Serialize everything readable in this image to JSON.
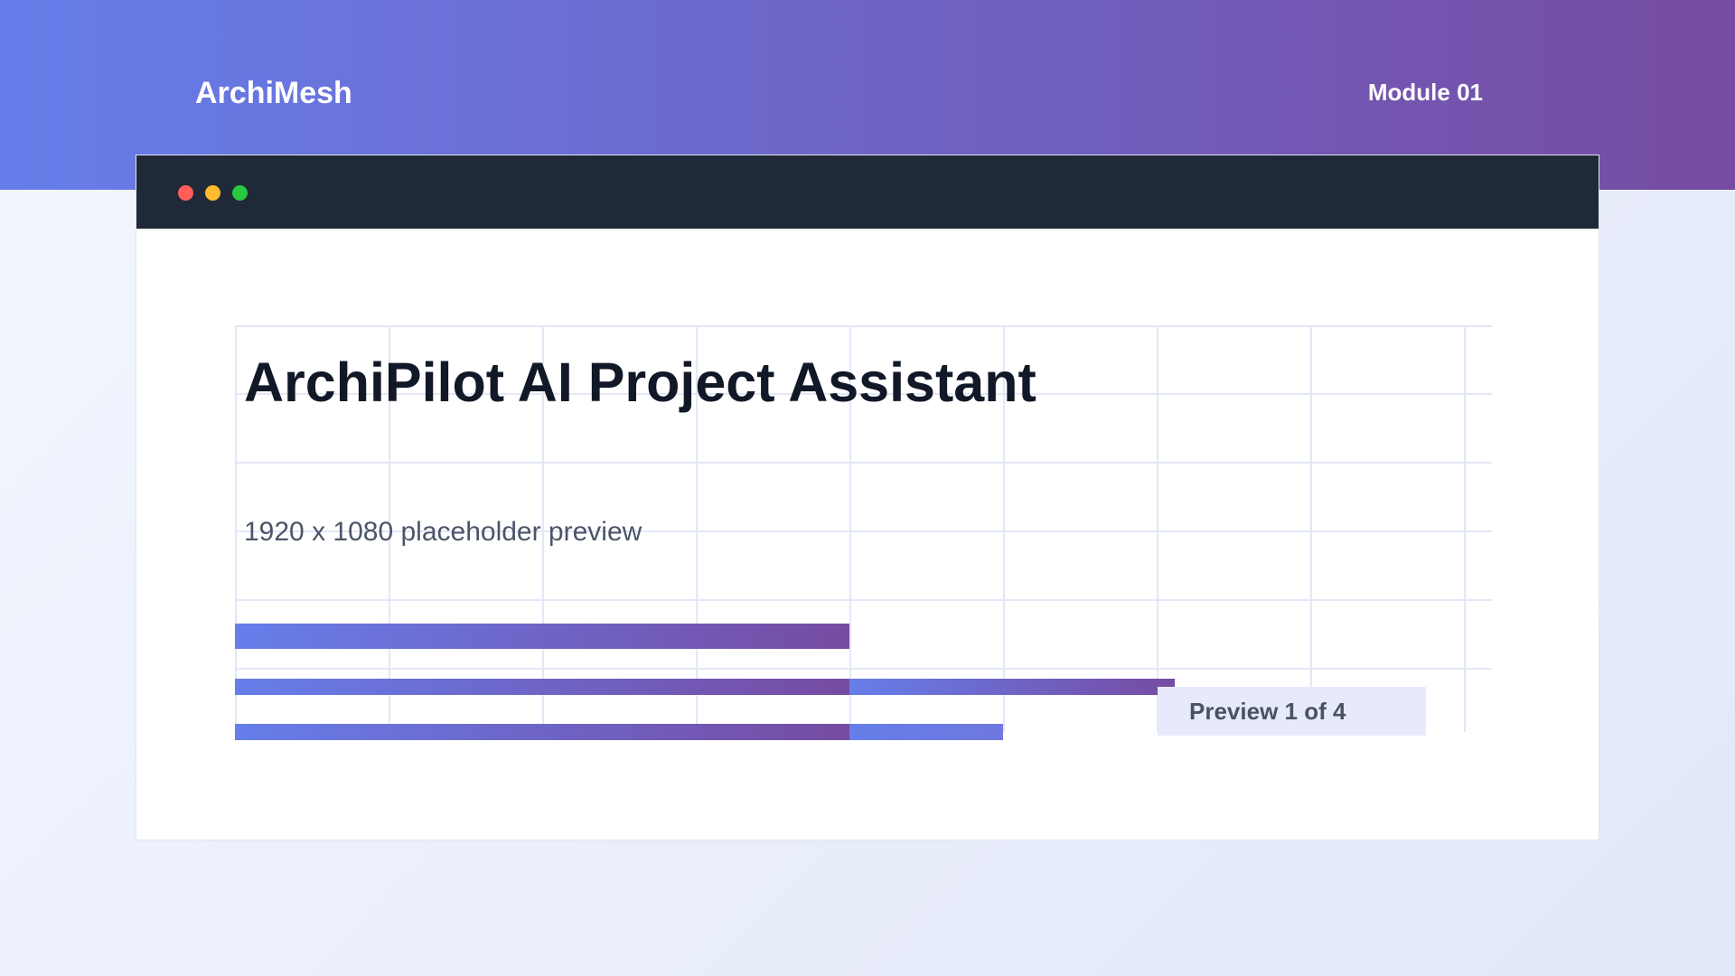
{
  "header": {
    "brand": "ArchiMesh",
    "module": "Module 01"
  },
  "window": {
    "controls": [
      {
        "name": "close",
        "color": "#ff5f57"
      },
      {
        "name": "minimize",
        "color": "#febc2e"
      },
      {
        "name": "maximize",
        "color": "#28c840"
      }
    ]
  },
  "content": {
    "title": "ArchiPilot AI Project Assistant",
    "subtitle": "1920 x 1080 placeholder preview",
    "badge": "Preview 1 of 4"
  },
  "colors": {
    "accent_start": "#667eea",
    "accent_end": "#764ba2",
    "window_bar": "#202937",
    "badge_bg": "#e6eafb"
  }
}
